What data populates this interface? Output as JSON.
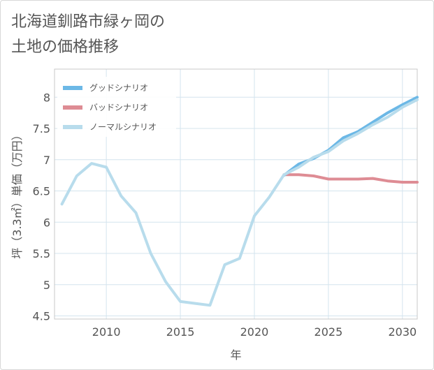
{
  "title": {
    "line1": "北海道釧路市緑ヶ岡の",
    "line2": "土地の価格推移"
  },
  "chart_data": {
    "type": "line",
    "xlabel": "年",
    "ylabel": "坪（3.3㎡）単価（万円）",
    "xlim": [
      2006.5,
      2031
    ],
    "ylim": [
      4.45,
      8.45
    ],
    "xticks": [
      2010,
      2015,
      2020,
      2025,
      2030
    ],
    "yticks": [
      4.5,
      5,
      5.5,
      6,
      6.5,
      7,
      7.5,
      8
    ],
    "grid": true,
    "legend_position": "top-left",
    "series": [
      {
        "name": "グッドシナリオ",
        "color": "#6cb8e6",
        "x": [
          2022,
          2023,
          2024,
          2025,
          2026,
          2027,
          2028,
          2029,
          2030,
          2031
        ],
        "y": [
          6.75,
          6.93,
          7.02,
          7.15,
          7.35,
          7.45,
          7.6,
          7.75,
          7.88,
          8.0
        ]
      },
      {
        "name": "バッドシナリオ",
        "color": "#de8c94",
        "x": [
          2022,
          2023,
          2024,
          2025,
          2026,
          2027,
          2028,
          2029,
          2030,
          2031
        ],
        "y": [
          6.76,
          6.76,
          6.74,
          6.69,
          6.69,
          6.69,
          6.7,
          6.66,
          6.64,
          6.64
        ]
      },
      {
        "name": "ノーマルシナリオ",
        "color": "#b8dcec",
        "x": [
          2007,
          2008,
          2009,
          2010,
          2011,
          2012,
          2013,
          2014,
          2015,
          2016,
          2017,
          2018,
          2019,
          2020,
          2021,
          2022,
          2023,
          2024,
          2025,
          2026,
          2027,
          2028,
          2029,
          2030,
          2031
        ],
        "y": [
          6.29,
          6.74,
          6.94,
          6.88,
          6.42,
          6.15,
          5.5,
          5.05,
          4.73,
          4.7,
          4.67,
          5.32,
          5.42,
          6.1,
          6.4,
          6.76,
          6.88,
          7.04,
          7.13,
          7.3,
          7.42,
          7.56,
          7.68,
          7.84,
          7.96
        ]
      }
    ]
  }
}
